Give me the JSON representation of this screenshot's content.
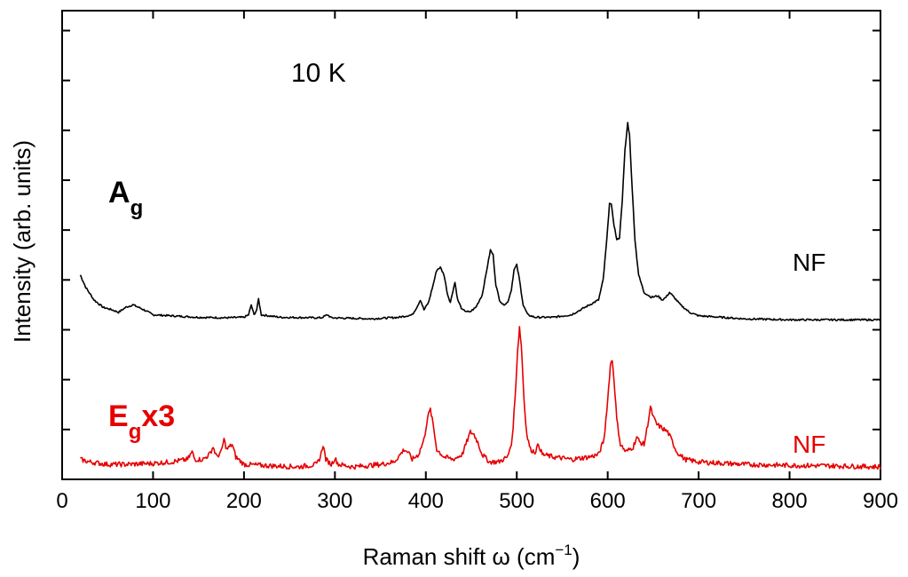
{
  "chart_data": {
    "type": "line",
    "annotation": "10 K",
    "xlabel_prefix": "Raman shift ω (cm",
    "xlabel_sup": "−1",
    "xlabel_suffix": ")",
    "ylabel": "Intensity (arb. units)",
    "xlim": [
      0,
      900
    ],
    "ylim": [
      0,
      9.4
    ],
    "grid": false,
    "x_ticks": [
      0,
      100,
      200,
      300,
      400,
      500,
      600,
      700,
      800,
      900
    ],
    "x_tick_labels": [
      "0",
      "100",
      "200",
      "300",
      "400",
      "500",
      "600",
      "700",
      "800",
      "900"
    ],
    "y_ticks": [
      1,
      2,
      3,
      4,
      5,
      6,
      7,
      8,
      9
    ],
    "series": [
      {
        "name": "Ag",
        "label_main": "A",
        "label_sub": "g",
        "label_suffix": "",
        "end_label": "NF",
        "color": "#000000",
        "baseline": 3.2,
        "start_x": 20,
        "points": [
          [
            20,
            4.1
          ],
          [
            26,
            3.85
          ],
          [
            35,
            3.6
          ],
          [
            45,
            3.45
          ],
          [
            55,
            3.4
          ],
          [
            62,
            3.35
          ],
          [
            70,
            3.45
          ],
          [
            78,
            3.5
          ],
          [
            90,
            3.4
          ],
          [
            100,
            3.3
          ],
          [
            120,
            3.28
          ],
          [
            150,
            3.25
          ],
          [
            180,
            3.24
          ],
          [
            200,
            3.25
          ],
          [
            205,
            3.3
          ],
          [
            208,
            3.5
          ],
          [
            211,
            3.3
          ],
          [
            214,
            3.4
          ],
          [
            216,
            3.62
          ],
          [
            219,
            3.3
          ],
          [
            240,
            3.25
          ],
          [
            285,
            3.24
          ],
          [
            292,
            3.3
          ],
          [
            296,
            3.24
          ],
          [
            340,
            3.22
          ],
          [
            370,
            3.25
          ],
          [
            385,
            3.3
          ],
          [
            390,
            3.45
          ],
          [
            394,
            3.6
          ],
          [
            398,
            3.4
          ],
          [
            403,
            3.55
          ],
          [
            408,
            3.9
          ],
          [
            412,
            4.2
          ],
          [
            416,
            4.25
          ],
          [
            420,
            4.1
          ],
          [
            424,
            3.7
          ],
          [
            427,
            3.55
          ],
          [
            430,
            3.8
          ],
          [
            432,
            3.95
          ],
          [
            435,
            3.6
          ],
          [
            440,
            3.4
          ],
          [
            448,
            3.35
          ],
          [
            455,
            3.45
          ],
          [
            462,
            3.7
          ],
          [
            467,
            4.2
          ],
          [
            471,
            4.6
          ],
          [
            474,
            4.5
          ],
          [
            477,
            3.9
          ],
          [
            481,
            3.6
          ],
          [
            485,
            3.5
          ],
          [
            490,
            3.55
          ],
          [
            494,
            3.8
          ],
          [
            497,
            4.2
          ],
          [
            500,
            4.3
          ],
          [
            503,
            4.0
          ],
          [
            507,
            3.5
          ],
          [
            512,
            3.3
          ],
          [
            520,
            3.25
          ],
          [
            540,
            3.25
          ],
          [
            560,
            3.3
          ],
          [
            570,
            3.4
          ],
          [
            580,
            3.5
          ],
          [
            590,
            3.6
          ],
          [
            595,
            4.0
          ],
          [
            599,
            4.8
          ],
          [
            602,
            5.55
          ],
          [
            604,
            5.5
          ],
          [
            607,
            5.1
          ],
          [
            610,
            4.8
          ],
          [
            613,
            4.85
          ],
          [
            616,
            5.6
          ],
          [
            619,
            6.6
          ],
          [
            622,
            7.15
          ],
          [
            624,
            6.9
          ],
          [
            627,
            5.8
          ],
          [
            630,
            4.8
          ],
          [
            634,
            4.1
          ],
          [
            640,
            3.75
          ],
          [
            648,
            3.65
          ],
          [
            655,
            3.68
          ],
          [
            660,
            3.6
          ],
          [
            664,
            3.65
          ],
          [
            668,
            3.75
          ],
          [
            673,
            3.65
          ],
          [
            680,
            3.5
          ],
          [
            690,
            3.35
          ],
          [
            700,
            3.28
          ],
          [
            750,
            3.22
          ],
          [
            800,
            3.2
          ],
          [
            850,
            3.2
          ],
          [
            900,
            3.2
          ]
        ]
      },
      {
        "name": "Eg x3",
        "label_main": "E",
        "label_sub": "g",
        "label_suffix": "x3",
        "end_label": "NF",
        "color": "#e60000",
        "baseline": 0.25,
        "start_x": 20,
        "points": [
          [
            20,
            0.4
          ],
          [
            30,
            0.35
          ],
          [
            50,
            0.3
          ],
          [
            70,
            0.3
          ],
          [
            100,
            0.32
          ],
          [
            120,
            0.35
          ],
          [
            138,
            0.4
          ],
          [
            143,
            0.55
          ],
          [
            146,
            0.4
          ],
          [
            155,
            0.4
          ],
          [
            162,
            0.5
          ],
          [
            166,
            0.65
          ],
          [
            170,
            0.45
          ],
          [
            175,
            0.55
          ],
          [
            178,
            0.8
          ],
          [
            181,
            0.6
          ],
          [
            184,
            0.65
          ],
          [
            187,
            0.7
          ],
          [
            191,
            0.45
          ],
          [
            200,
            0.3
          ],
          [
            220,
            0.28
          ],
          [
            260,
            0.25
          ],
          [
            280,
            0.3
          ],
          [
            284,
            0.45
          ],
          [
            287,
            0.7
          ],
          [
            290,
            0.4
          ],
          [
            296,
            0.3
          ],
          [
            300,
            0.42
          ],
          [
            304,
            0.3
          ],
          [
            320,
            0.25
          ],
          [
            350,
            0.3
          ],
          [
            365,
            0.35
          ],
          [
            372,
            0.5
          ],
          [
            376,
            0.6
          ],
          [
            380,
            0.55
          ],
          [
            385,
            0.4
          ],
          [
            392,
            0.5
          ],
          [
            398,
            0.8
          ],
          [
            402,
            1.25
          ],
          [
            405,
            1.4
          ],
          [
            408,
            1.1
          ],
          [
            412,
            0.6
          ],
          [
            420,
            0.45
          ],
          [
            430,
            0.4
          ],
          [
            440,
            0.5
          ],
          [
            446,
            0.8
          ],
          [
            449,
            0.95
          ],
          [
            453,
            0.9
          ],
          [
            457,
            0.75
          ],
          [
            462,
            0.5
          ],
          [
            470,
            0.35
          ],
          [
            480,
            0.35
          ],
          [
            490,
            0.45
          ],
          [
            495,
            0.8
          ],
          [
            498,
            1.6
          ],
          [
            501,
            2.6
          ],
          [
            503,
            3.05
          ],
          [
            505,
            2.7
          ],
          [
            508,
            1.6
          ],
          [
            511,
            0.9
          ],
          [
            515,
            0.6
          ],
          [
            520,
            0.55
          ],
          [
            524,
            0.7
          ],
          [
            528,
            0.5
          ],
          [
            540,
            0.45
          ],
          [
            560,
            0.4
          ],
          [
            580,
            0.45
          ],
          [
            590,
            0.5
          ],
          [
            596,
            0.8
          ],
          [
            600,
            1.6
          ],
          [
            603,
            2.3
          ],
          [
            605,
            2.4
          ],
          [
            607,
            2.0
          ],
          [
            610,
            1.2
          ],
          [
            614,
            0.7
          ],
          [
            620,
            0.55
          ],
          [
            628,
            0.65
          ],
          [
            632,
            0.85
          ],
          [
            635,
            0.75
          ],
          [
            640,
            0.7
          ],
          [
            644,
            1.1
          ],
          [
            647,
            1.45
          ],
          [
            650,
            1.25
          ],
          [
            654,
            1.1
          ],
          [
            658,
            1.05
          ],
          [
            662,
            1.0
          ],
          [
            666,
            0.95
          ],
          [
            670,
            0.8
          ],
          [
            676,
            0.55
          ],
          [
            685,
            0.4
          ],
          [
            700,
            0.35
          ],
          [
            750,
            0.3
          ],
          [
            800,
            0.28
          ],
          [
            850,
            0.27
          ],
          [
            900,
            0.25
          ]
        ]
      }
    ]
  }
}
